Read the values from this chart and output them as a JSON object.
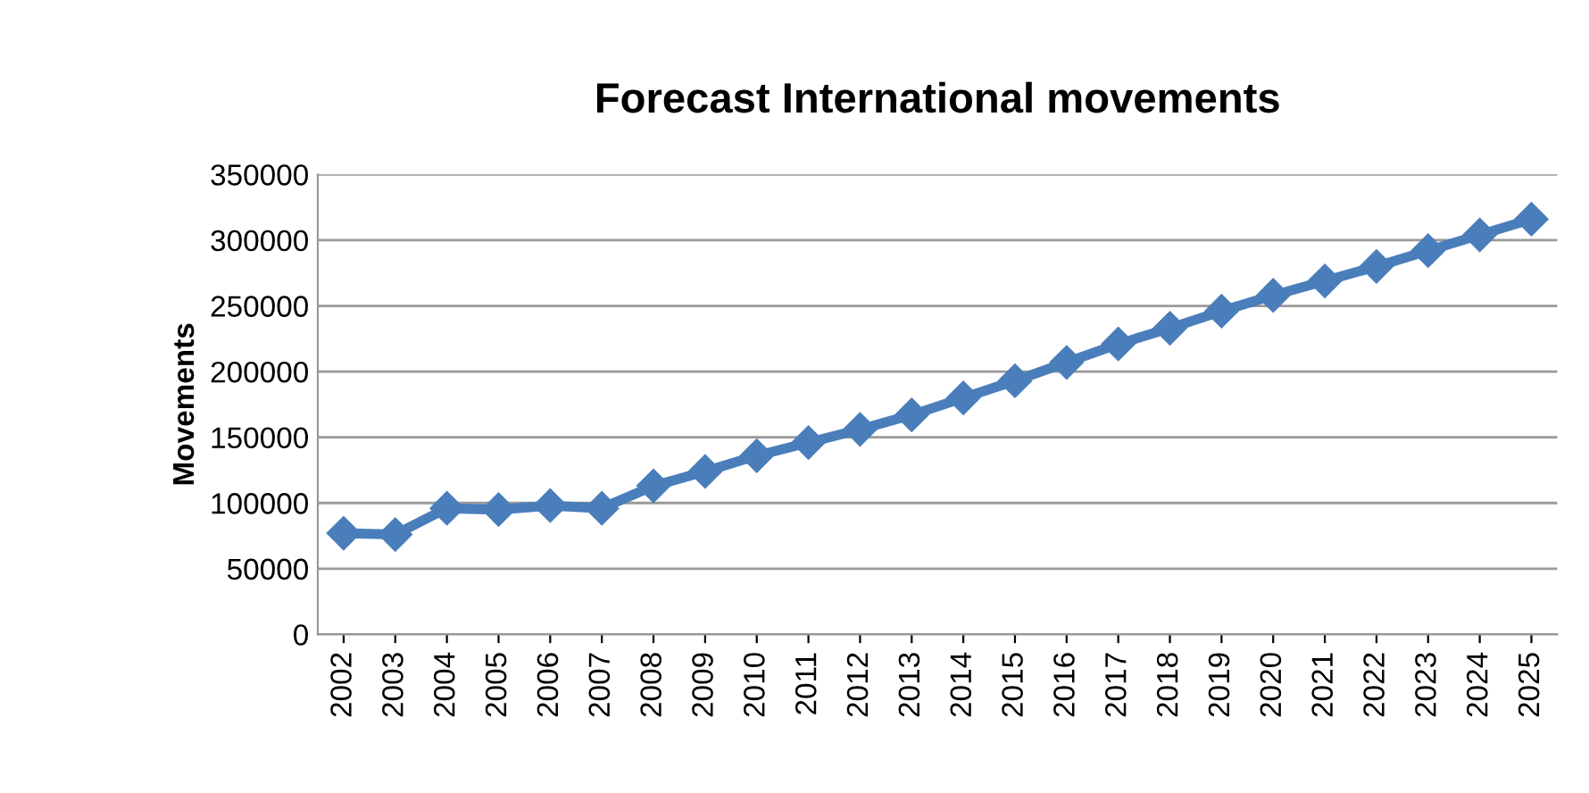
{
  "chart_data": {
    "type": "line",
    "title": "Forecast International movements",
    "ylabel": "Movements",
    "categories": [
      "2002",
      "2003",
      "2004",
      "2005",
      "2006",
      "2007",
      "2008",
      "2009",
      "2010",
      "2011",
      "2012",
      "2013",
      "2014",
      "2015",
      "2016",
      "2017",
      "2018",
      "2019",
      "2020",
      "2021",
      "2022",
      "2023",
      "2024",
      "2025"
    ],
    "series": [
      {
        "color": "#4a7ebb",
        "values": [
          77000,
          76000,
          96000,
          95000,
          98000,
          96000,
          113000,
          124000,
          136000,
          146000,
          156000,
          167000,
          180000,
          193000,
          207000,
          221000,
          233000,
          246000,
          258000,
          269000,
          280000,
          292000,
          304000,
          316000
        ]
      }
    ],
    "ylim": [
      0,
      350000
    ],
    "yticks": [
      0,
      50000,
      100000,
      150000,
      200000,
      250000,
      300000,
      350000
    ],
    "grid": "y",
    "marker": "diamond",
    "line_style": "solid",
    "legend": false
  }
}
